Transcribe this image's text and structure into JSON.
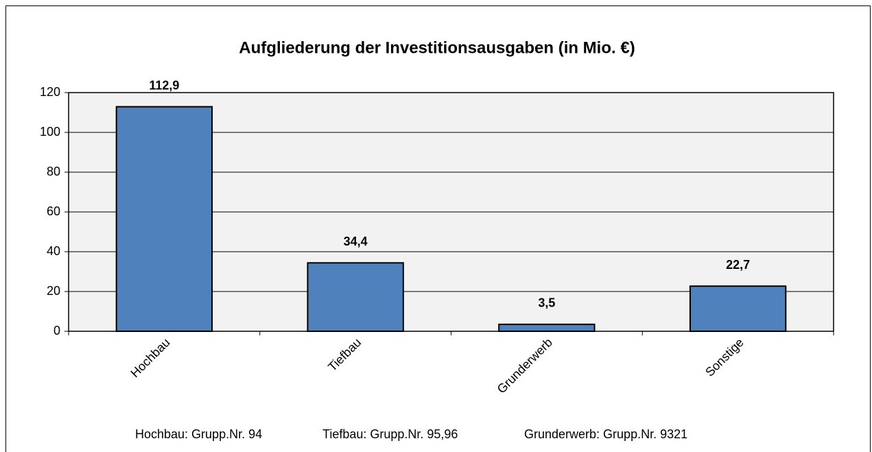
{
  "chart_data": {
    "type": "bar",
    "title": "Aufgliederung der Investitionsausgaben (in Mio. €)",
    "categories": [
      "Hochbau",
      "Tiefbau",
      "Grunderwerb",
      "Sonstige"
    ],
    "values": [
      112.9,
      34.4,
      3.5,
      22.7
    ],
    "value_labels": [
      "112,9",
      "34,4",
      "3,5",
      "22,7"
    ],
    "color": "#4f81bd",
    "ylim": [
      0,
      120
    ],
    "yticks": [
      0,
      20,
      40,
      60,
      80,
      100,
      120
    ],
    "grid": true,
    "notes": [
      "Hochbau: Grupp.Nr. 94",
      "Tiefbau: Grupp.Nr. 95,96",
      "Grunderwerb: Grupp.Nr. 9321"
    ]
  }
}
